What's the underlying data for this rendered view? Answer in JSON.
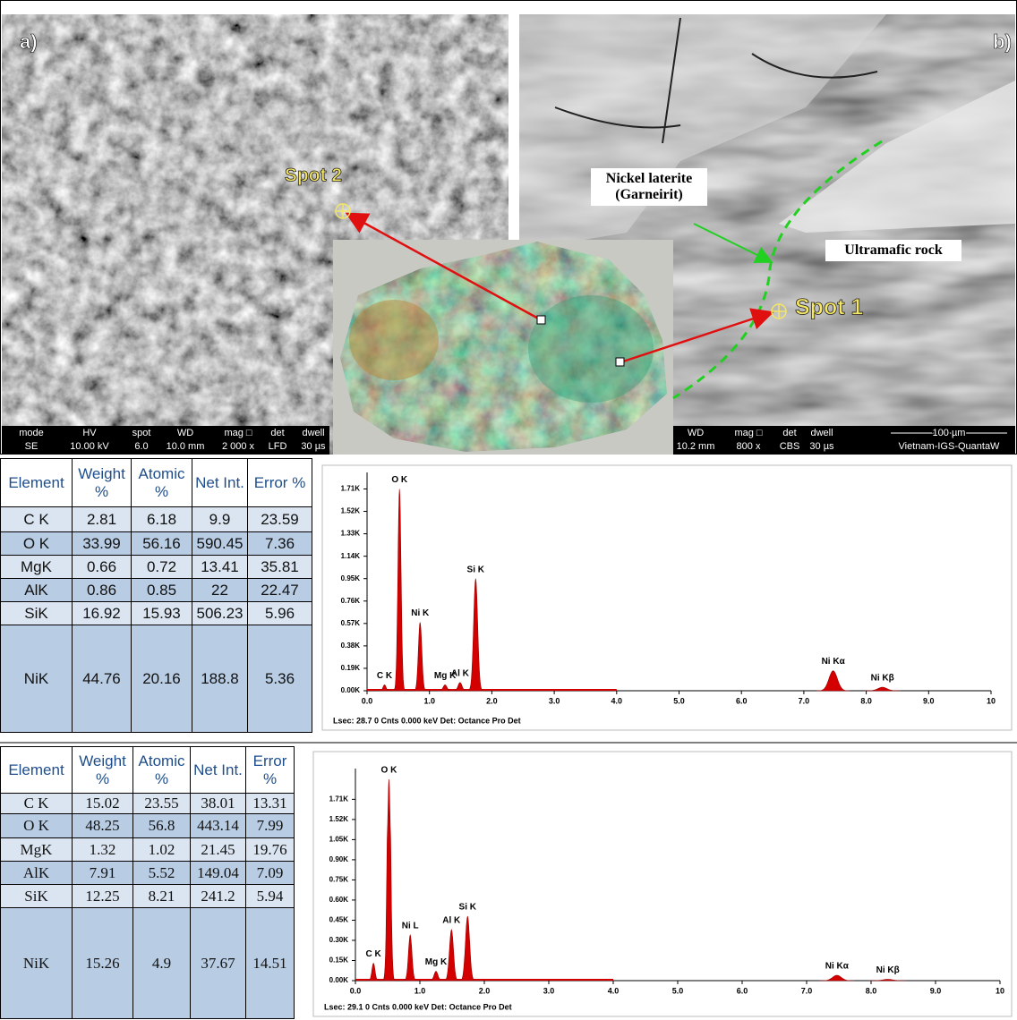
{
  "figure": {
    "panel_a": {
      "label": "a)",
      "spot": "Spot 2",
      "databar": [
        {
          "head": "mode",
          "value": "SE"
        },
        {
          "head": "HV",
          "value": "10.00 kV"
        },
        {
          "head": "spot",
          "value": "6.0"
        },
        {
          "head": "WD",
          "value": "10.0 mm"
        },
        {
          "head": "mag □",
          "value": "2 000 x"
        },
        {
          "head": "det",
          "value": "LFD"
        },
        {
          "head": "dwell",
          "value": "30 µs"
        }
      ]
    },
    "panel_b": {
      "label": "b)",
      "spot": "Spot 1",
      "annotations": [
        "Nickel laterite (Garneirit)",
        "Ultramafic rock"
      ],
      "databar": [
        {
          "head": "WD",
          "value": "10.2 mm"
        },
        {
          "head": "mag □",
          "value": "800 x"
        },
        {
          "head": "det",
          "value": "CBS"
        },
        {
          "head": "dwell",
          "value": "30 µs"
        }
      ],
      "scale_bar": "100 µm",
      "instrument": "Vietnam-IGS-QuantaW"
    }
  },
  "tables": [
    {
      "columns": [
        "Element",
        "Weight %",
        "Atomic %",
        "Net Int.",
        "Error %"
      ],
      "rows": [
        [
          "C K",
          2.81,
          6.18,
          9.9,
          23.59
        ],
        [
          "O K",
          33.99,
          56.16,
          590.45,
          7.36
        ],
        [
          "MgK",
          0.66,
          0.72,
          13.41,
          35.81
        ],
        [
          "AlK",
          0.86,
          0.85,
          22,
          22.47
        ],
        [
          "SiK",
          16.92,
          15.93,
          506.23,
          5.96
        ],
        [
          "NiK",
          44.76,
          20.16,
          188.8,
          5.36
        ]
      ]
    },
    {
      "columns": [
        "Element",
        "Weight %",
        "Atomic %",
        "Net Int.",
        "Error %"
      ],
      "rows": [
        [
          "C K",
          15.02,
          23.55,
          38.01,
          13.31
        ],
        [
          "O K",
          48.25,
          56.8,
          443.14,
          7.99
        ],
        [
          "MgK",
          1.32,
          1.02,
          21.45,
          19.76
        ],
        [
          "AlK",
          7.91,
          5.52,
          149.04,
          7.09
        ],
        [
          "SiK",
          12.25,
          8.21,
          241.2,
          5.94
        ],
        [
          "NiK",
          15.26,
          4.9,
          37.67,
          14.51
        ]
      ]
    }
  ],
  "chart_data": [
    {
      "type": "spectrum",
      "footer": "Lsec: 28.7 0 Cnts 0.000 keV Det: Octance Pro Det",
      "color": "#d40000",
      "x": [
        0.28,
        0.52,
        0.85,
        1.25,
        1.49,
        1.74,
        7.47,
        8.26
      ],
      "values": [
        0.05,
        1.71,
        0.58,
        0.05,
        0.07,
        0.95,
        0.17,
        0.03
      ],
      "labels": [
        "C K",
        "O K",
        "Ni K",
        "Mg K",
        "Al K",
        "Si K",
        "Ni Kα",
        "Ni Kβ"
      ],
      "xlim": [
        0,
        10
      ],
      "ylim": [
        0,
        1.85
      ],
      "xticks": [
        {
          "value": 0,
          "label": "0.0"
        },
        {
          "value": 1,
          "label": "1.0"
        },
        {
          "value": 2,
          "label": "2.0"
        },
        {
          "value": 3,
          "label": "3.0"
        },
        {
          "value": 4,
          "label": "4.0"
        },
        {
          "value": 5,
          "label": "5.0"
        },
        {
          "value": 6,
          "label": "6.0"
        },
        {
          "value": 7,
          "label": "7.0"
        },
        {
          "value": 8,
          "label": "8.0"
        },
        {
          "value": 9,
          "label": "9.0"
        },
        10
      ],
      "yticks": [
        {
          "value": 0,
          "label": "0.00K"
        },
        {
          "value": 0.19,
          "label": "0.19K"
        },
        {
          "value": 0.38,
          "label": "0.38K"
        },
        {
          "value": 0.57,
          "label": "0.57K"
        },
        {
          "value": 0.76,
          "label": "0.76K"
        },
        {
          "value": 0.95,
          "label": "0.95K"
        },
        {
          "value": 1.14,
          "label": "1.14K"
        },
        {
          "value": 1.33,
          "label": "1.33K"
        },
        {
          "value": 1.52,
          "label": "1.52K"
        },
        {
          "value": 1.71,
          "label": "1.71K"
        }
      ]
    },
    {
      "type": "spectrum",
      "footer": "Lsec: 29.1 0 Cnts 0.000 keV Det: Octance Pro Det",
      "color": "#d40000",
      "x": [
        0.28,
        0.52,
        0.85,
        1.25,
        1.49,
        1.74,
        7.47,
        8.26
      ],
      "values": [
        0.13,
        1.9,
        0.34,
        0.07,
        0.38,
        0.48,
        0.04,
        0.01
      ],
      "labels": [
        "C K",
        "O K",
        "Ni L",
        "Mg K",
        "Al K",
        "Si K",
        "Ni Kα",
        "Ni Kβ"
      ],
      "xlim": [
        0,
        10
      ],
      "ylim": [
        0,
        2.0
      ],
      "xticks": [
        {
          "value": 0,
          "label": "0.0"
        },
        {
          "value": 1,
          "label": "1.0"
        },
        {
          "value": 2,
          "label": "2.0"
        },
        {
          "value": 3,
          "label": "3.0"
        },
        {
          "value": 4,
          "label": "4.0"
        },
        {
          "value": 5,
          "label": "5.0"
        },
        {
          "value": 6,
          "label": "6.0"
        },
        {
          "value": 7,
          "label": "7.0"
        },
        {
          "value": 8,
          "label": "8.0"
        },
        {
          "value": 9,
          "label": "9.0"
        },
        10
      ],
      "yticks": [
        {
          "value": 0,
          "label": "0.00K"
        },
        {
          "value": 0.15,
          "label": "0.15K"
        },
        {
          "value": 0.3,
          "label": "0.30K"
        },
        {
          "value": 0.45,
          "label": "0.45K"
        },
        {
          "value": 0.6,
          "label": "0.60K"
        },
        {
          "value": 0.75,
          "label": "0.75K"
        },
        {
          "value": 0.9,
          "label": "0.90K"
        },
        {
          "value": 1.05,
          "label": "1.05K"
        },
        {
          "value": 1.52,
          "label": "1.52K"
        },
        {
          "value": 1.71,
          "label": "1.71K"
        }
      ]
    }
  ]
}
